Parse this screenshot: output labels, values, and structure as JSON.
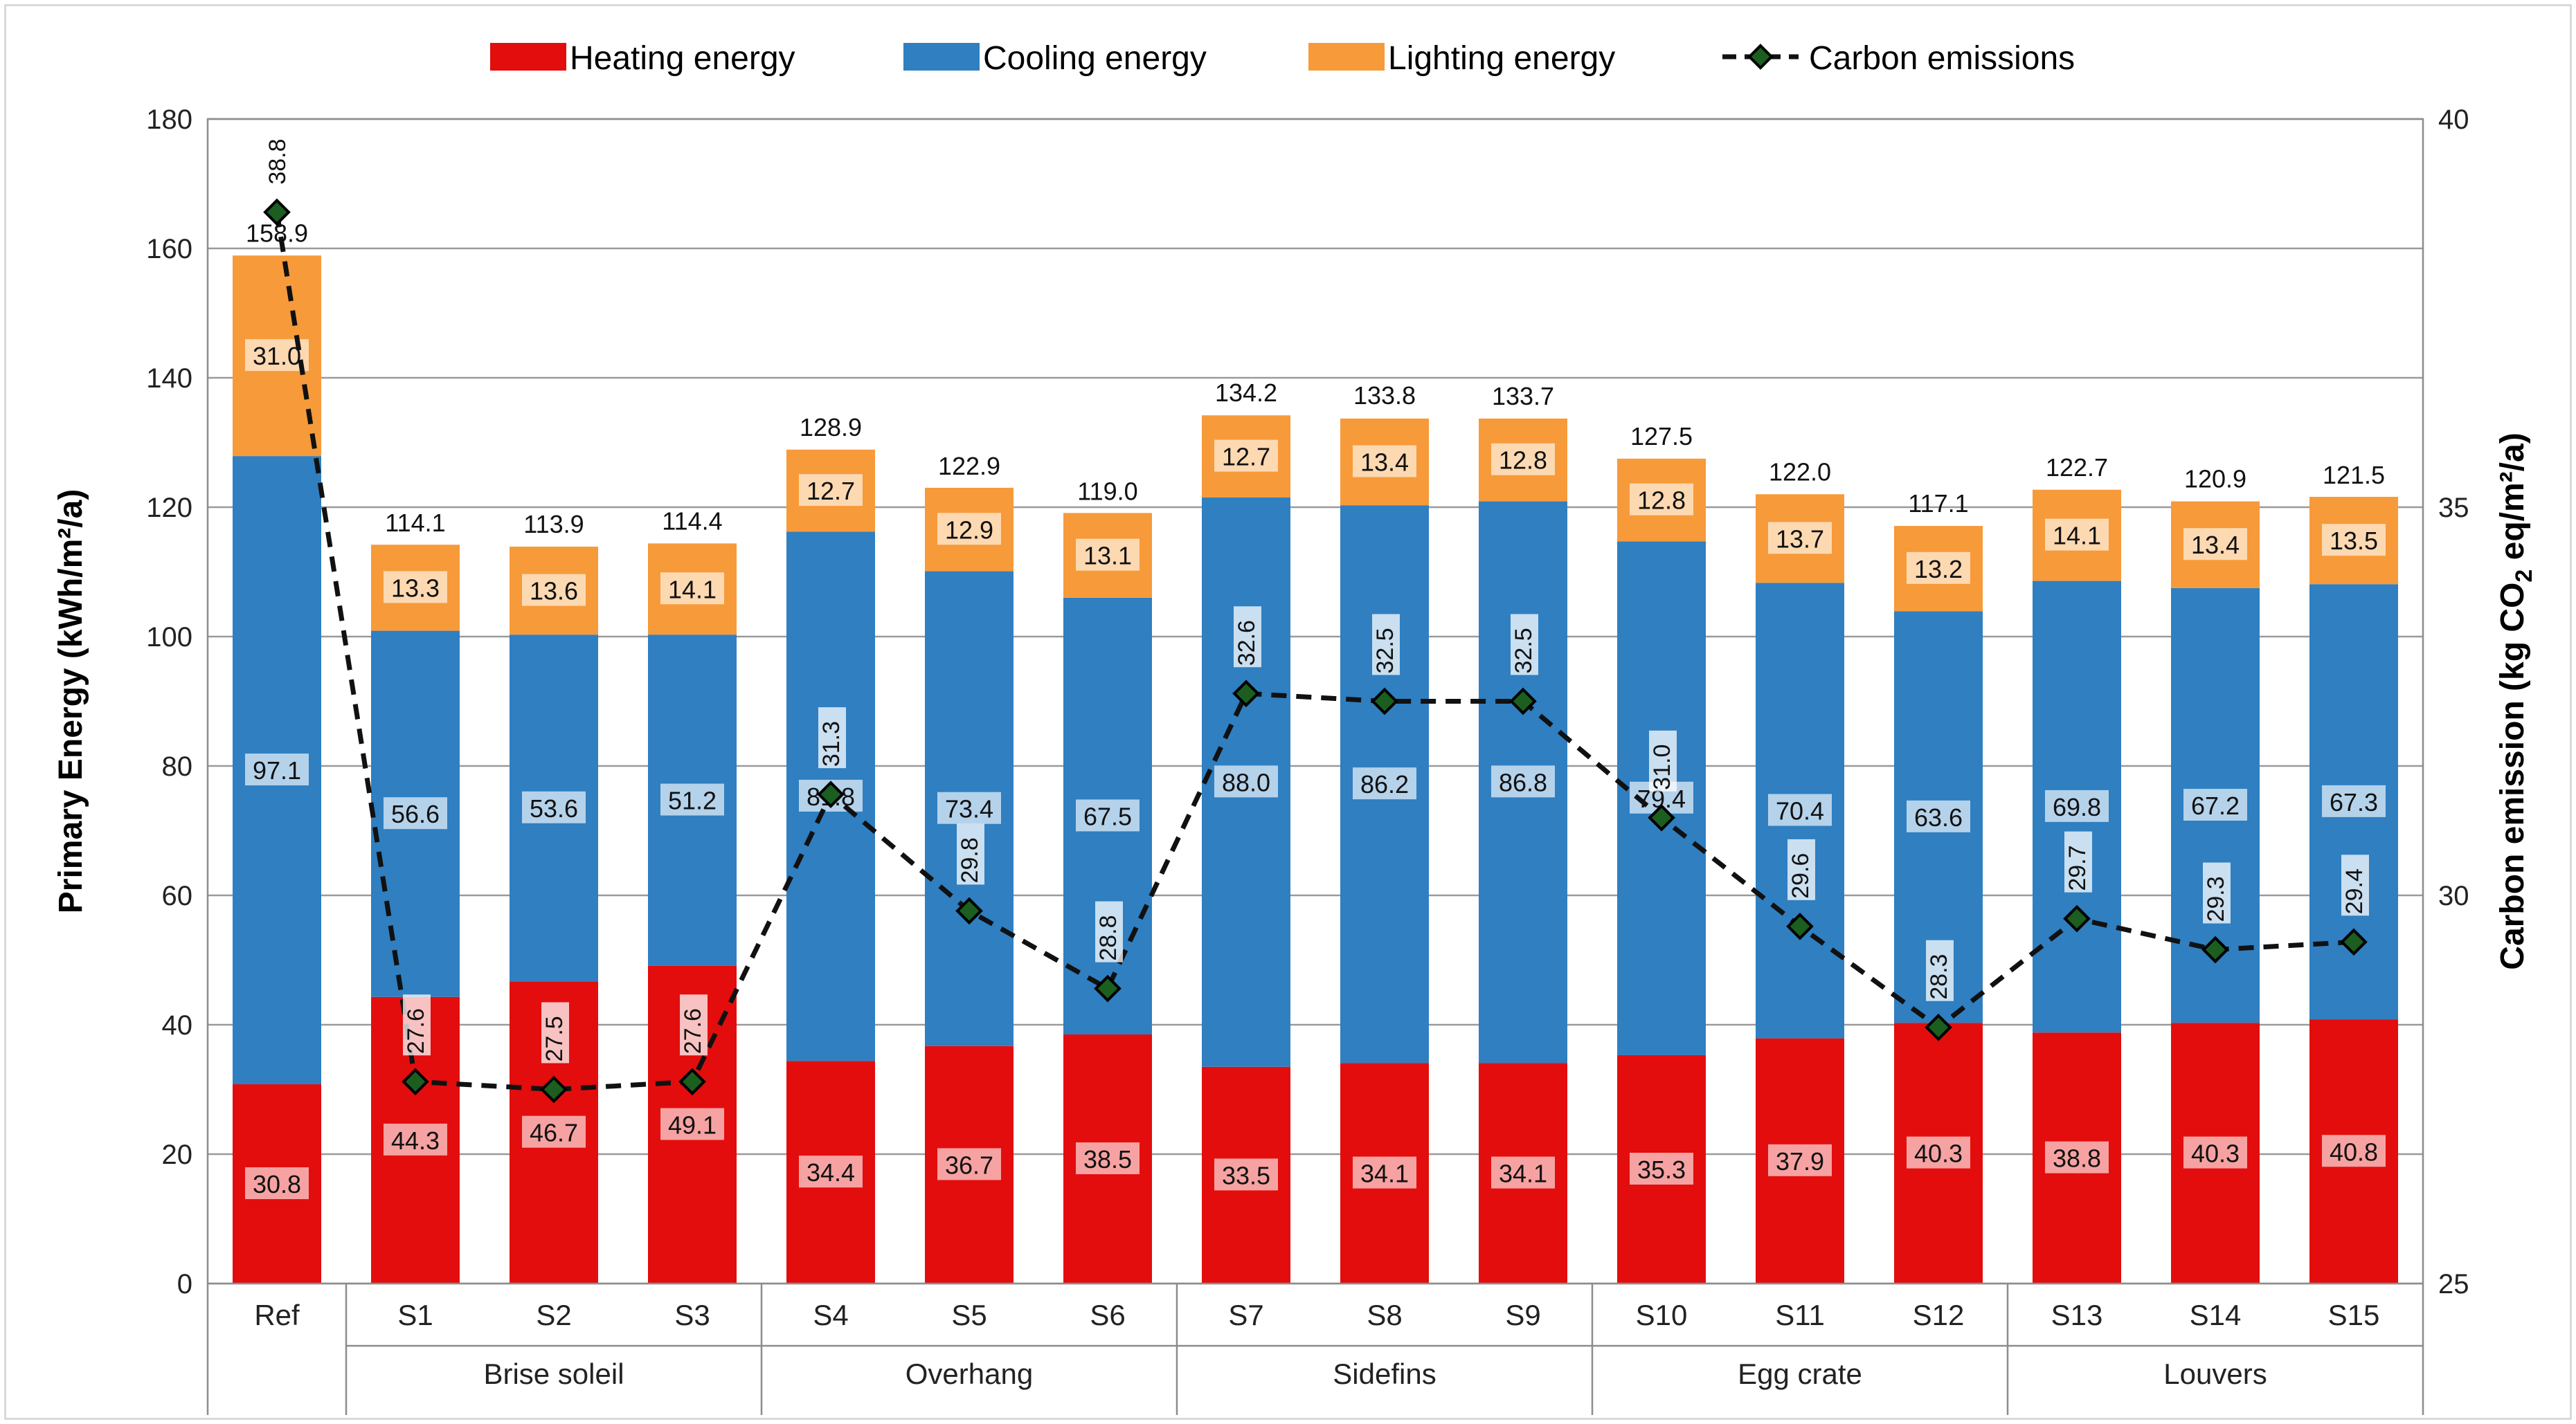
{
  "chart_data": {
    "type": "bar",
    "stacked": true,
    "categories": [
      "Ref",
      "S1",
      "S2",
      "S3",
      "S4",
      "S5",
      "S6",
      "S7",
      "S8",
      "S9",
      "S10",
      "S11",
      "S12",
      "S13",
      "S14",
      "S15"
    ],
    "groups": [
      {
        "label": "",
        "members": [
          "Ref"
        ]
      },
      {
        "label": "Brise soleil",
        "members": [
          "S1",
          "S2",
          "S3"
        ]
      },
      {
        "label": "Overhang",
        "members": [
          "S4",
          "S5",
          "S6"
        ]
      },
      {
        "label": "Sidefins",
        "members": [
          "S7",
          "S8",
          "S9"
        ]
      },
      {
        "label": "Egg crate",
        "members": [
          "S10",
          "S11",
          "S12"
        ]
      },
      {
        "label": "Louvers",
        "members": [
          "S13",
          "S14",
          "S15"
        ]
      }
    ],
    "series": [
      {
        "name": "Heating energy",
        "color": "#e30d0d",
        "values": [
          30.8,
          44.3,
          46.7,
          49.1,
          34.4,
          36.7,
          38.5,
          33.5,
          34.1,
          34.1,
          35.3,
          37.9,
          40.3,
          38.8,
          40.3,
          40.8
        ]
      },
      {
        "name": "Cooling energy",
        "color": "#2f7fc1",
        "values": [
          97.1,
          56.6,
          53.6,
          51.2,
          81.8,
          73.4,
          67.5,
          88.0,
          86.2,
          86.8,
          79.4,
          70.4,
          63.6,
          69.8,
          67.2,
          67.3
        ]
      },
      {
        "name": "Lighting energy",
        "color": "#f79a3a",
        "values": [
          31.0,
          13.3,
          13.6,
          14.1,
          12.7,
          12.9,
          13.1,
          12.7,
          13.4,
          12.8,
          12.8,
          13.7,
          13.2,
          14.1,
          13.4,
          13.5
        ]
      }
    ],
    "value_labels": {
      "Heating energy": [
        "30.8",
        "44.3",
        "46.7",
        "49.1",
        "34.4",
        "36.7",
        "38.5",
        "33.5",
        "34.1",
        "34.1",
        "35.3",
        "37.9",
        "40.3",
        "38.8",
        "40.3",
        "40.8"
      ],
      "Cooling energy": [
        "97.1",
        "56.6",
        "53.6",
        "51.2",
        "81.8",
        "73.4",
        "67.5",
        "88.0",
        "86.2",
        "86.8",
        "79.4",
        "70.4",
        "63.6",
        "69.8",
        "67.2",
        "67.3"
      ],
      "Lighting energy": [
        "31.0",
        "13.3",
        "13.6",
        "14.1",
        "12.7",
        "12.9",
        "13.1",
        "12.7",
        "13.4",
        "12.8",
        "12.8",
        "13.7",
        "13.2",
        "14.1",
        "13.4",
        "13.5"
      ]
    },
    "totals": [
      158.9,
      114.1,
      113.9,
      114.4,
      128.9,
      122.9,
      119.0,
      134.2,
      133.8,
      133.7,
      127.5,
      122.0,
      117.1,
      122.7,
      120.9,
      121.5
    ],
    "total_labels": [
      "158.9",
      "114.1",
      "113.9",
      "114.4",
      "128.9",
      "122.9",
      "119.0",
      "134.2",
      "133.8",
      "133.7",
      "127.5",
      "122.0",
      "117.1",
      "122.7",
      "120.9",
      "121.5"
    ],
    "line_series": {
      "name": "Carbon emissions",
      "color": "#111111",
      "marker_color": "#1b5e20",
      "axis": "right",
      "values": [
        38.8,
        27.6,
        27.5,
        27.6,
        31.3,
        29.8,
        28.8,
        32.6,
        32.5,
        32.5,
        31.0,
        29.6,
        28.3,
        29.7,
        29.3,
        29.4
      ],
      "labels": [
        "38.8",
        "27.6",
        "27.5",
        "27.6",
        "31.3",
        "29.8",
        "28.8",
        "32.6",
        "32.5",
        "32.5",
        "31.0",
        "29.6",
        "28.3",
        "29.7",
        "29.3",
        "29.4"
      ]
    },
    "ylabel": "Primary Energy (kWh/m²/a)",
    "ylim": [
      0,
      180
    ],
    "yticks": [
      "0",
      "20",
      "40",
      "60",
      "80",
      "100",
      "120",
      "140",
      "160",
      "180"
    ],
    "ytick_values": [
      0,
      20,
      40,
      60,
      80,
      100,
      120,
      140,
      160,
      180
    ],
    "y2label_prefix": "Carbon emission (kg CO",
    "y2label_sub": "2",
    "y2label_suffix": " eq/m²/a)",
    "y2lim": [
      25,
      40
    ],
    "y2ticks": [
      "25",
      "30",
      "35",
      "40"
    ],
    "y2tick_values": [
      25,
      30,
      35,
      40
    ],
    "legend_position": "top-center",
    "grid": true
  }
}
